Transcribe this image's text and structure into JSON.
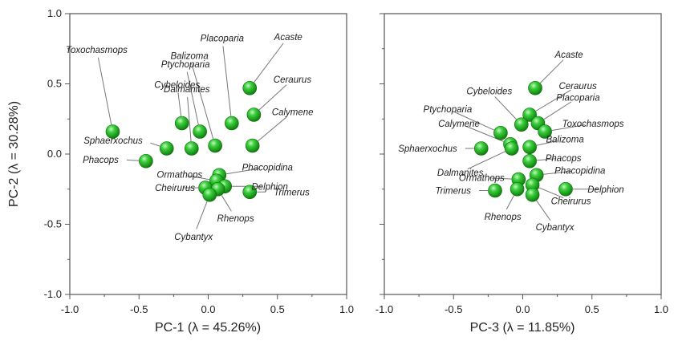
{
  "chart_data": [
    {
      "type": "scatter",
      "xlabel": "PC-1 (λ = 45.26%)",
      "ylabel": "PC-2 (λ = 30.28%)",
      "xlim": [
        -1.0,
        1.0
      ],
      "ylim": [
        -1.0,
        1.0
      ],
      "xticks": [
        "-1.0",
        "-0.5",
        "0.0",
        "0.5",
        "1.0"
      ],
      "yticks": [
        "1.0",
        "0.5",
        "0.0",
        "-0.5",
        "-1.0"
      ],
      "points": [
        {
          "name": "Toxochasmops",
          "x": -0.69,
          "y": 0.16
        },
        {
          "name": "Sphaerxochus",
          "x": -0.3,
          "y": 0.04
        },
        {
          "name": "Phacops",
          "x": -0.45,
          "y": -0.05
        },
        {
          "name": "Cybeloides",
          "x": -0.19,
          "y": 0.22
        },
        {
          "name": "Dalmanites",
          "x": -0.12,
          "y": 0.04
        },
        {
          "name": "Ptychoparia",
          "x": -0.06,
          "y": 0.16
        },
        {
          "name": "Balizoma",
          "x": 0.05,
          "y": 0.06
        },
        {
          "name": "Placoparia",
          "x": 0.17,
          "y": 0.22
        },
        {
          "name": "Acaste",
          "x": 0.3,
          "y": 0.47
        },
        {
          "name": "Ceraurus",
          "x": 0.33,
          "y": 0.28
        },
        {
          "name": "Calymene",
          "x": 0.32,
          "y": 0.06
        },
        {
          "name": "Phacopidina",
          "x": 0.08,
          "y": -0.15
        },
        {
          "name": "Ormathops",
          "x": 0.06,
          "y": -0.19
        },
        {
          "name": "Delphion",
          "x": 0.12,
          "y": -0.23
        },
        {
          "name": "Cheirurus",
          "x": -0.02,
          "y": -0.24
        },
        {
          "name": "Rhenops",
          "x": 0.07,
          "y": -0.25
        },
        {
          "name": "Cybantyx",
          "x": 0.01,
          "y": -0.29
        },
        {
          "name": "Trimerus",
          "x": 0.3,
          "y": -0.27
        }
      ]
    },
    {
      "type": "scatter",
      "xlabel": "PC-3 (λ = 11.85%)",
      "ylabel": "",
      "xlim": [
        -1.0,
        1.0
      ],
      "ylim": [
        -1.0,
        1.0
      ],
      "xticks": [
        "-1.0",
        "-0.5",
        "0.0",
        "0.5",
        "1.0"
      ],
      "points": [
        {
          "name": "Acaste",
          "x": 0.09,
          "y": 0.47
        },
        {
          "name": "Ceraurus",
          "x": 0.05,
          "y": 0.28
        },
        {
          "name": "Cybeloides",
          "x": -0.01,
          "y": 0.21
        },
        {
          "name": "Placoparia",
          "x": 0.11,
          "y": 0.22
        },
        {
          "name": "Toxochasmops",
          "x": 0.16,
          "y": 0.16
        },
        {
          "name": "Ptychoparia",
          "x": -0.16,
          "y": 0.15
        },
        {
          "name": "Calymene",
          "x": -0.09,
          "y": 0.07
        },
        {
          "name": "Sphaerxochus",
          "x": -0.3,
          "y": 0.04
        },
        {
          "name": "Dalmanites",
          "x": -0.08,
          "y": 0.04
        },
        {
          "name": "Balizoma",
          "x": 0.05,
          "y": 0.05
        },
        {
          "name": "Phacops",
          "x": 0.05,
          "y": -0.05
        },
        {
          "name": "Phacopidina",
          "x": 0.1,
          "y": -0.15
        },
        {
          "name": "Ormathops",
          "x": -0.03,
          "y": -0.18
        },
        {
          "name": "Delphion",
          "x": 0.31,
          "y": -0.25
        },
        {
          "name": "Trimerus",
          "x": -0.2,
          "y": -0.26
        },
        {
          "name": "Rhenops",
          "x": -0.04,
          "y": -0.25
        },
        {
          "name": "Cheirurus",
          "x": 0.07,
          "y": -0.22
        },
        {
          "name": "Cybantyx",
          "x": 0.07,
          "y": -0.29
        }
      ]
    }
  ],
  "colors": {
    "marker": "#17a817",
    "marker_highlight": "#b8f5b8",
    "marker_edge": "#0a6b0a",
    "frame": "#555555"
  }
}
